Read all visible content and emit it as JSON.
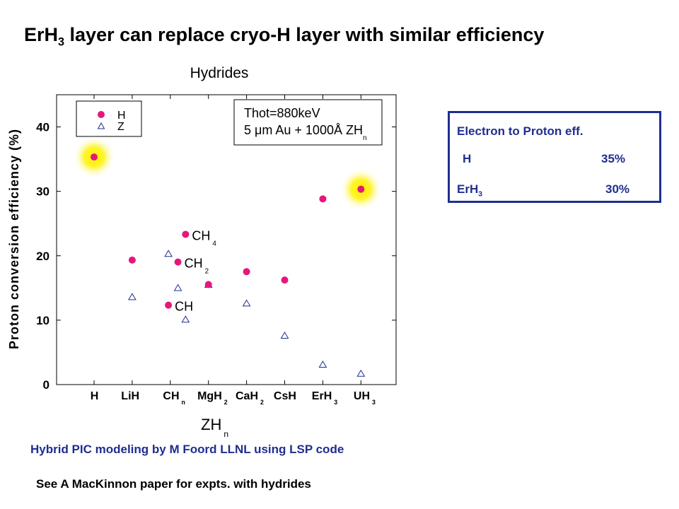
{
  "slide": {
    "title_pre": "ErH",
    "title_sub": "3",
    "title_post": " layer can replace cryo-H layer with similar efficiency"
  },
  "efficiency_box": {
    "heading": "Electron to Proton eff.",
    "rows": [
      {
        "label": "H",
        "label_sub": "",
        "value": "35%"
      },
      {
        "label": "ErH",
        "label_sub": "3",
        "value": "30%"
      }
    ]
  },
  "captions": {
    "modeling": "Hybrid  PIC modeling by M Foord LLNL using LSP code",
    "reference": "See A MacKinnon paper  for expts. with hydrides"
  },
  "colors": {
    "H_marker": "#e5177a",
    "Z_marker": "#1f2e8f",
    "highlight": "#fff200",
    "box_border": "#1f2e8f",
    "text_blue": "#1f2e8f"
  },
  "chart_data": {
    "type": "scatter",
    "title": "Hydrides",
    "xlabel": "ZH",
    "xlabel_sub": "n",
    "ylabel": "Proton conversion efficiency (%)",
    "ylim": [
      0,
      45
    ],
    "yticks": [
      0,
      10,
      20,
      30,
      40
    ],
    "categories": [
      {
        "base": "H",
        "sub": ""
      },
      {
        "base": "LiH",
        "sub": ""
      },
      {
        "base": "CH",
        "sub": "n"
      },
      {
        "base": "MgH",
        "sub": "2"
      },
      {
        "base": "CaH",
        "sub": "2"
      },
      {
        "base": "CsH",
        "sub": ""
      },
      {
        "base": "ErH",
        "sub": "3"
      },
      {
        "base": "UH",
        "sub": "3"
      }
    ],
    "legend": [
      {
        "name": "H",
        "marker": "circle"
      },
      {
        "name": "Z",
        "marker": "triangle"
      }
    ],
    "annotation": {
      "line1": "Thot=880keV",
      "line2_pre": "5 ",
      "line2_mu": "μ",
      "line2_mid": "m Au + 1000Å ZH",
      "line2_sub": "n"
    },
    "series": [
      {
        "name": "H",
        "points": [
          {
            "x": 0,
            "y": 35.0,
            "highlight": true
          },
          {
            "x": 1,
            "y": 19.0
          },
          {
            "x": 1.95,
            "y": 12.0,
            "label": "CH",
            "label_sub": ""
          },
          {
            "x": 2.2,
            "y": 18.7,
            "label": "CH",
            "label_sub": "2"
          },
          {
            "x": 2.4,
            "y": 23.0,
            "label": "CH",
            "label_sub": "4"
          },
          {
            "x": 3,
            "y": 15.2
          },
          {
            "x": 4,
            "y": 17.2
          },
          {
            "x": 5,
            "y": 15.9
          },
          {
            "x": 6,
            "y": 28.5
          },
          {
            "x": 7,
            "y": 30.0,
            "highlight": true
          }
        ]
      },
      {
        "name": "Z",
        "points": [
          {
            "x": 1,
            "y": 13.3
          },
          {
            "x": 1.95,
            "y": 20.0
          },
          {
            "x": 2.2,
            "y": 14.7
          },
          {
            "x": 2.4,
            "y": 9.8
          },
          {
            "x": 3,
            "y": 15.2
          },
          {
            "x": 4,
            "y": 12.3
          },
          {
            "x": 5,
            "y": 7.3
          },
          {
            "x": 6,
            "y": 2.8
          },
          {
            "x": 7,
            "y": 1.4
          }
        ]
      }
    ]
  }
}
